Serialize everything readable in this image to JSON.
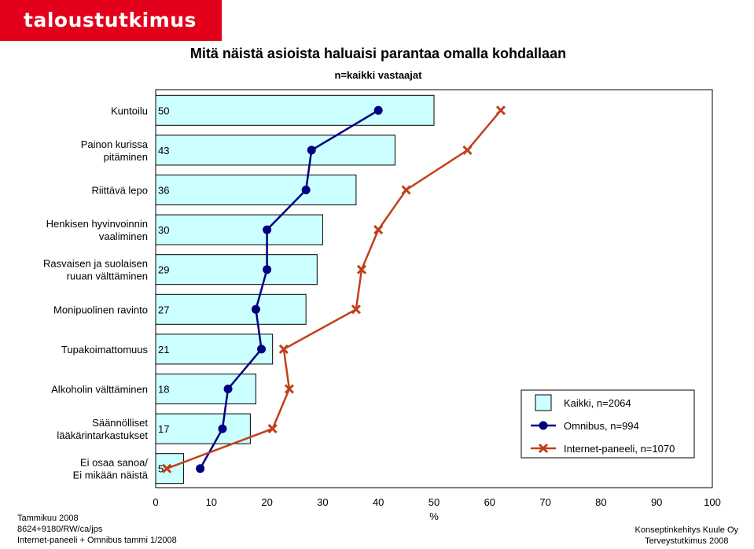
{
  "brand": {
    "logo_text": "taloustutkimus oy",
    "color": "#e3001b"
  },
  "chart_data": {
    "type": "bar",
    "title": "Mitä näistä asioista haluaisi parantaa omalla kohdallaan",
    "subtitle": "n=kaikki vastaajat",
    "xlabel": "%",
    "xlim": [
      0,
      100
    ],
    "xticks": [
      "0",
      "10",
      "20",
      "30",
      "40",
      "50",
      "60",
      "70",
      "80",
      "90",
      "100"
    ],
    "categories": [
      [
        "Kuntoilu"
      ],
      [
        "Painon kurissa",
        "pitäminen"
      ],
      [
        "Riittävä lepo"
      ],
      [
        "Henkisen hyvinvoinnin",
        "vaaliminen"
      ],
      [
        "Rasvaisen ja suolaisen",
        "ruuan välttäminen"
      ],
      [
        "Monipuolinen ravinto"
      ],
      [
        "Tupakoimattomuus"
      ],
      [
        "Alkoholin välttäminen"
      ],
      [
        "Säännölliset",
        "lääkärintarkastukset"
      ],
      [
        "Ei osaa sanoa/",
        "Ei mikään näistä"
      ]
    ],
    "series": [
      {
        "name": "Kaikki, n=2064",
        "kind": "bar",
        "color": "#ccffff",
        "values": [
          50,
          43,
          36,
          30,
          29,
          27,
          21,
          18,
          17,
          5
        ]
      },
      {
        "name": "Omnibus, n=994",
        "kind": "line-dot",
        "color": "#000080",
        "values": [
          40,
          28,
          27,
          20,
          20,
          18,
          19,
          13,
          12,
          8
        ]
      },
      {
        "name": "Internet-paneeli, n=1070",
        "kind": "line-x",
        "color": "#c0401a",
        "values": [
          62,
          56,
          45,
          40,
          37,
          36,
          23,
          24,
          21,
          2
        ]
      }
    ],
    "legend_position": "right",
    "grid": false
  },
  "footer": {
    "left": [
      "Tammikuu 2008",
      "8624+9180/RW/ca/jps",
      "Internet-paneeli + Omnibus tammi 1/2008"
    ],
    "right": [
      "Konseptinkehitys Kuule Oy",
      "Terveystutkimus 2008"
    ]
  }
}
